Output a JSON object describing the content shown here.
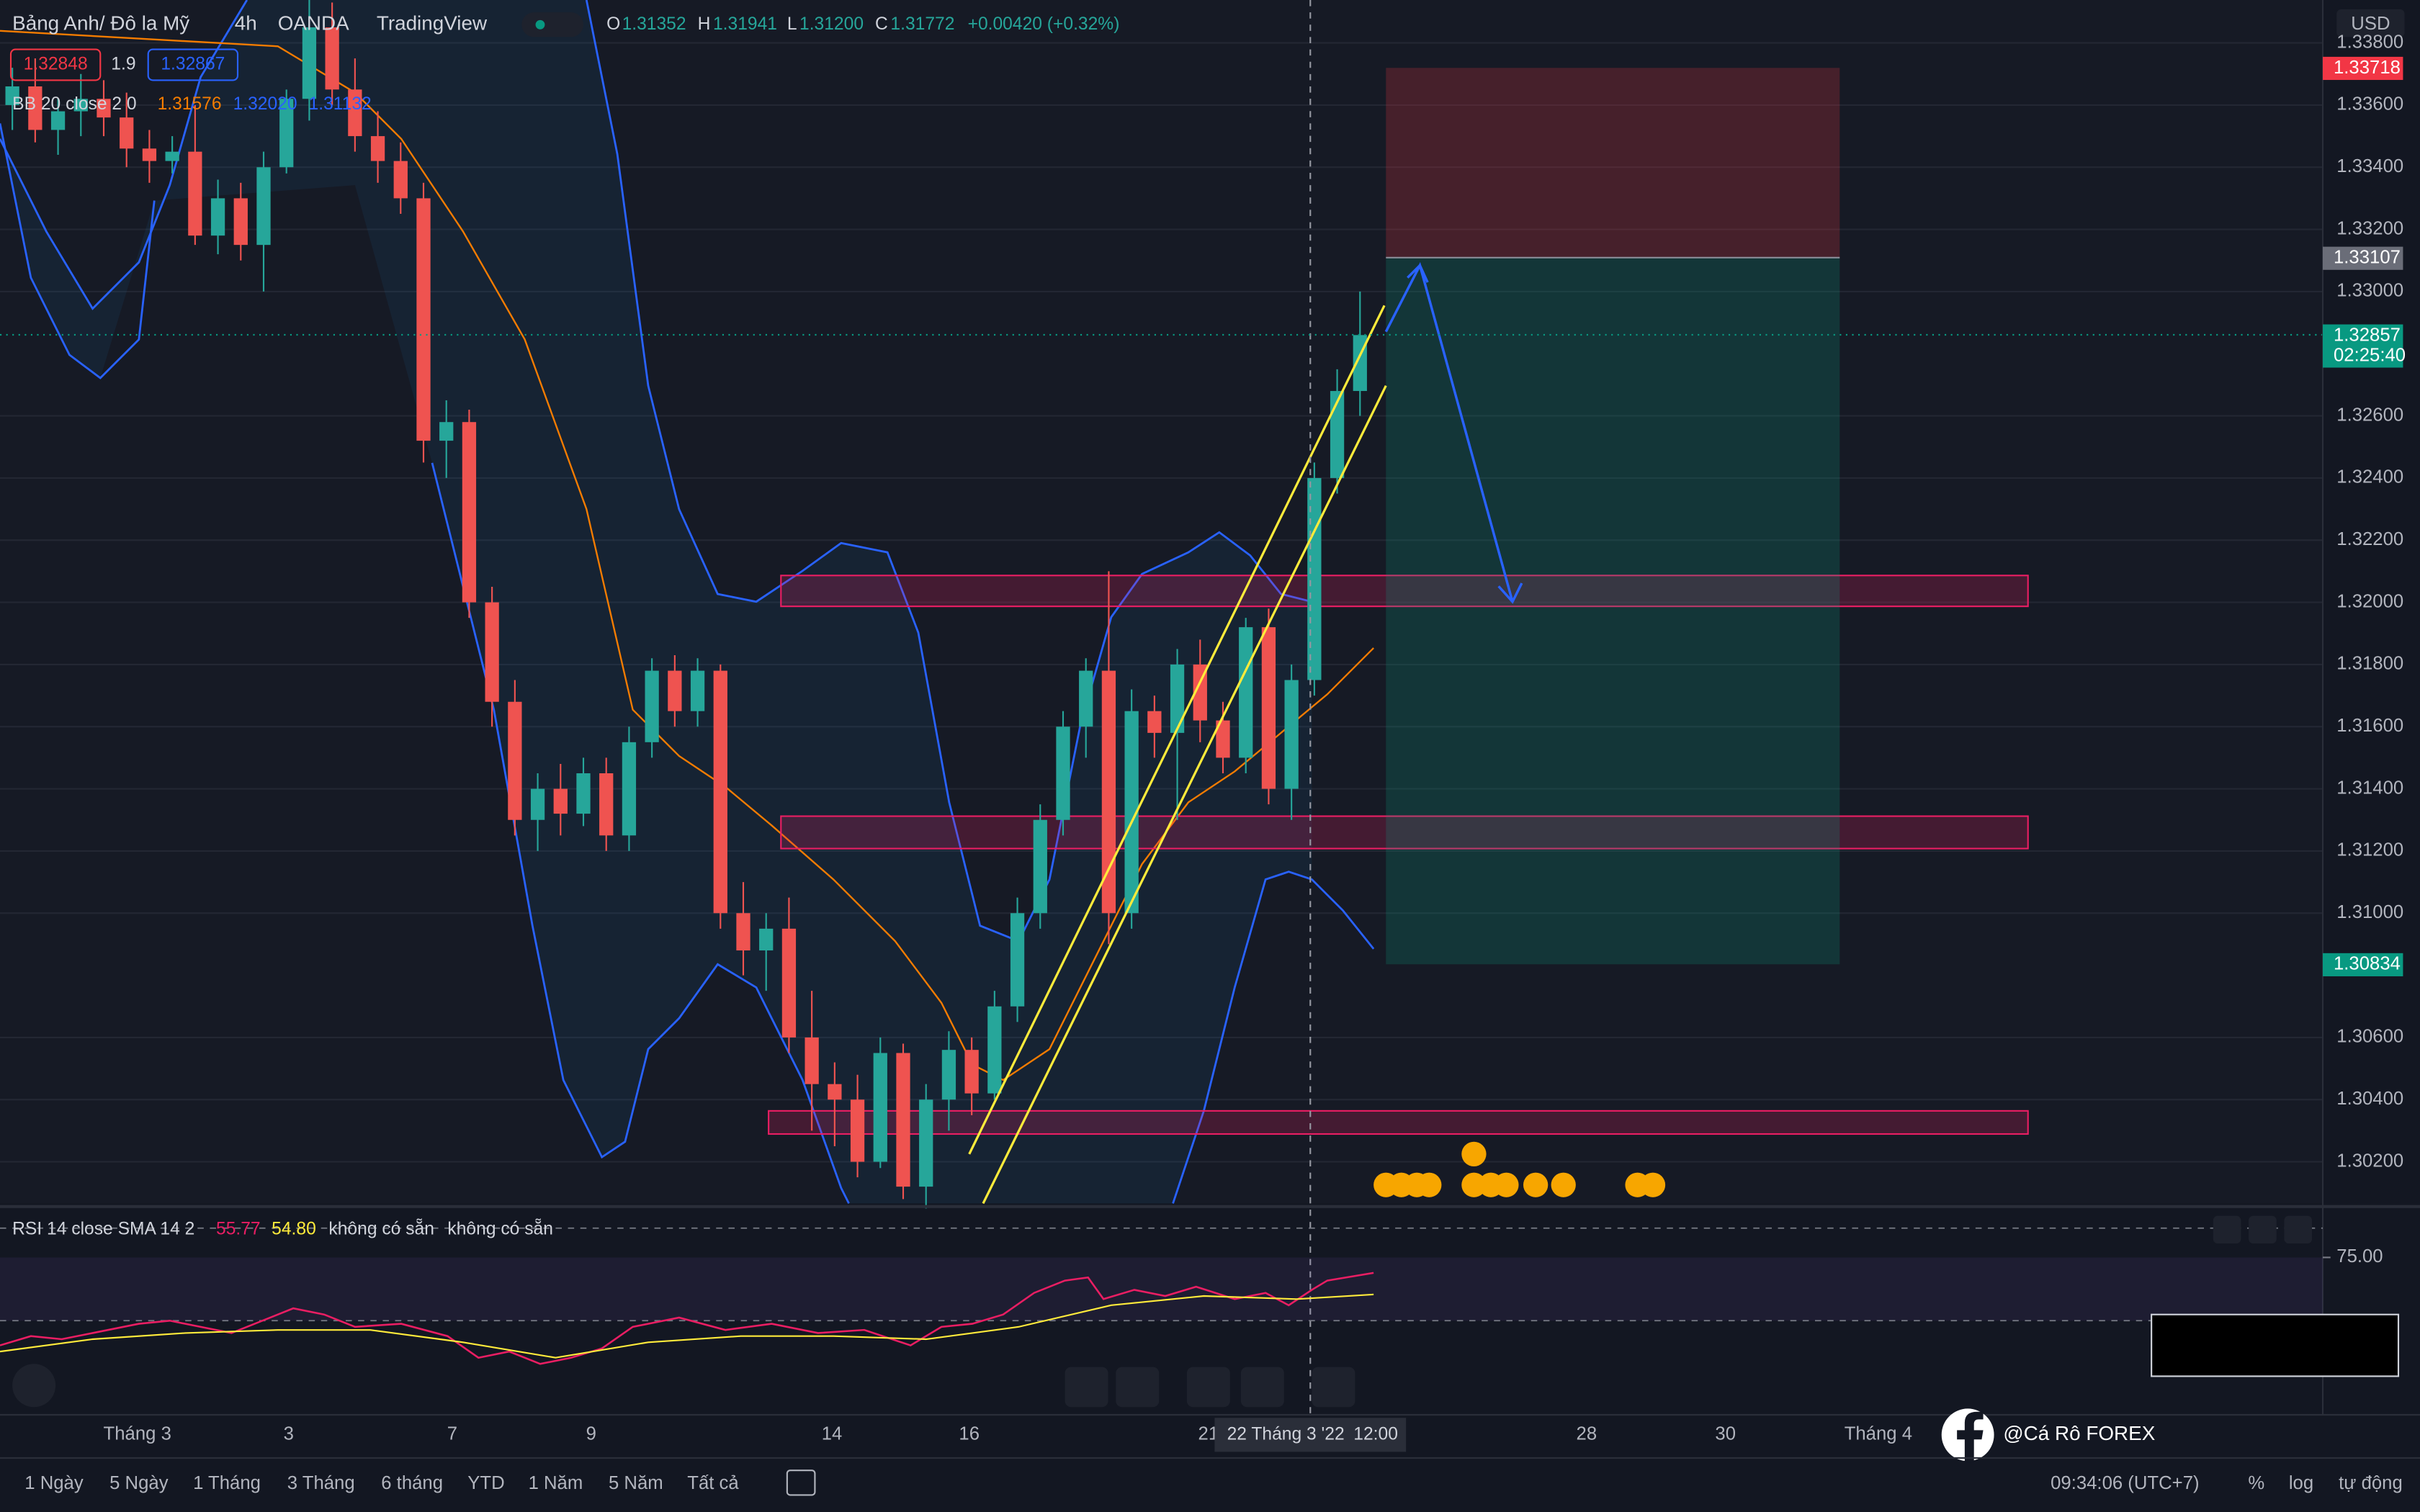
{
  "header": {
    "symbol": "Bảng Anh/ Đô la Mỹ",
    "interval": "4h",
    "broker": "OANDA",
    "platform": "TradingView",
    "open_key": "O",
    "open": "1.31352",
    "high_key": "H",
    "high": "1.31941",
    "low_key": "L",
    "low": "1.31200",
    "close_key": "C",
    "close": "1.31772",
    "change": "+0.00420 (+0.32%)",
    "sell": "1.32848",
    "spread": "1.9",
    "buy": "1.32867"
  },
  "bb_legend": {
    "name": "BB 20 close 2 0",
    "basis": "1.31576",
    "upper": "1.32020",
    "lower": "1.31132"
  },
  "chart": {
    "currency": "USD",
    "ylim": [
      1.30066,
      1.33938
    ],
    "yticks": [
      {
        "value": 1.338,
        "label": "1.33800"
      },
      {
        "value": 1.336,
        "label": "1.33600"
      },
      {
        "value": 1.334,
        "label": "1.33400"
      },
      {
        "value": 1.332,
        "label": "1.33200"
      },
      {
        "value": 1.33,
        "label": "1.33000"
      },
      {
        "value": 1.326,
        "label": "1.32600"
      },
      {
        "value": 1.324,
        "label": "1.32400"
      },
      {
        "value": 1.322,
        "label": "1.32200"
      },
      {
        "value": 1.32,
        "label": "1.32000"
      },
      {
        "value": 1.318,
        "label": "1.31800"
      },
      {
        "value": 1.316,
        "label": "1.31600"
      },
      {
        "value": 1.314,
        "label": "1.31400"
      },
      {
        "value": 1.312,
        "label": "1.31200"
      },
      {
        "value": 1.31,
        "label": "1.31000"
      },
      {
        "value": 1.306,
        "label": "1.30600"
      },
      {
        "value": 1.304,
        "label": "1.30400"
      },
      {
        "value": 1.302,
        "label": "1.30200"
      }
    ],
    "price_tags": [
      {
        "value": 1.33718,
        "color": "#f23645"
      },
      {
        "value": 1.33107,
        "color": "#6a6d78"
      },
      {
        "value": 1.32857,
        "color": "#089981",
        "countdown": "02:25:40"
      },
      {
        "value": 1.30834,
        "color": "#089981"
      }
    ],
    "up_color": "#26a69a",
    "down_color": "#ef5350",
    "candles": [
      [
        1.336,
        1.3372,
        1.3352,
        1.3366
      ],
      [
        1.3366,
        1.3375,
        1.3348,
        1.3352
      ],
      [
        1.3352,
        1.3362,
        1.3344,
        1.3358
      ],
      [
        1.3358,
        1.337,
        1.335,
        1.3362
      ],
      [
        1.3362,
        1.3368,
        1.335,
        1.3356
      ],
      [
        1.3356,
        1.3364,
        1.334,
        1.3346
      ],
      [
        1.3346,
        1.3352,
        1.3335,
        1.3342
      ],
      [
        1.3342,
        1.335,
        1.3338,
        1.3345
      ],
      [
        1.3345,
        1.336,
        1.3315,
        1.3318
      ],
      [
        1.3318,
        1.3336,
        1.3312,
        1.333
      ],
      [
        1.333,
        1.3335,
        1.331,
        1.3315
      ],
      [
        1.3315,
        1.3345,
        1.33,
        1.334
      ],
      [
        1.334,
        1.3365,
        1.3338,
        1.3362
      ],
      [
        1.3362,
        1.3395,
        1.3355,
        1.3385
      ],
      [
        1.3385,
        1.3393,
        1.336,
        1.3365
      ],
      [
        1.3365,
        1.3375,
        1.3345,
        1.335
      ],
      [
        1.335,
        1.3358,
        1.3335,
        1.3342
      ],
      [
        1.3342,
        1.3348,
        1.3325,
        1.333
      ],
      [
        1.333,
        1.3335,
        1.3245,
        1.3252
      ],
      [
        1.3252,
        1.3265,
        1.324,
        1.3258
      ],
      [
        1.3258,
        1.3262,
        1.3195,
        1.32
      ],
      [
        1.32,
        1.3205,
        1.316,
        1.3168
      ],
      [
        1.3168,
        1.3175,
        1.3125,
        1.313
      ],
      [
        1.313,
        1.3145,
        1.312,
        1.314
      ],
      [
        1.314,
        1.3148,
        1.3125,
        1.3132
      ],
      [
        1.3132,
        1.315,
        1.3128,
        1.3145
      ],
      [
        1.3145,
        1.315,
        1.312,
        1.3125
      ],
      [
        1.3125,
        1.316,
        1.312,
        1.3155
      ],
      [
        1.3155,
        1.3182,
        1.315,
        1.3178
      ],
      [
        1.3178,
        1.3183,
        1.316,
        1.3165
      ],
      [
        1.3165,
        1.3182,
        1.316,
        1.3178
      ],
      [
        1.3178,
        1.318,
        1.3095,
        1.31
      ],
      [
        1.31,
        1.311,
        1.308,
        1.3088
      ],
      [
        1.3088,
        1.31,
        1.3075,
        1.3095
      ],
      [
        1.3095,
        1.3105,
        1.3055,
        1.306
      ],
      [
        1.306,
        1.3075,
        1.303,
        1.3045
      ],
      [
        1.3045,
        1.3052,
        1.3025,
        1.304
      ],
      [
        1.304,
        1.3048,
        1.3015,
        1.302
      ],
      [
        1.302,
        1.306,
        1.3018,
        1.3055
      ],
      [
        1.3055,
        1.3058,
        1.3008,
        1.3012
      ],
      [
        1.3012,
        1.3045,
        1.3005,
        1.304
      ],
      [
        1.304,
        1.3062,
        1.303,
        1.3056
      ],
      [
        1.3056,
        1.306,
        1.3035,
        1.3042
      ],
      [
        1.3042,
        1.3075,
        1.304,
        1.307
      ],
      [
        1.307,
        1.3105,
        1.3065,
        1.31
      ],
      [
        1.31,
        1.3135,
        1.3095,
        1.313
      ],
      [
        1.313,
        1.3165,
        1.3125,
        1.316
      ],
      [
        1.316,
        1.3182,
        1.315,
        1.3178
      ],
      [
        1.3178,
        1.321,
        1.309,
        1.31
      ],
      [
        1.31,
        1.3172,
        1.3095,
        1.3165
      ],
      [
        1.3165,
        1.317,
        1.315,
        1.3158
      ],
      [
        1.3158,
        1.3185,
        1.313,
        1.318
      ],
      [
        1.318,
        1.3188,
        1.3155,
        1.3162
      ],
      [
        1.3162,
        1.3168,
        1.3145,
        1.315
      ],
      [
        1.315,
        1.3195,
        1.3145,
        1.3192
      ],
      [
        1.3192,
        1.3198,
        1.3135,
        1.314
      ],
      [
        1.314,
        1.318,
        1.313,
        1.3175
      ],
      [
        1.3175,
        1.3245,
        1.317,
        1.324
      ],
      [
        1.324,
        1.3275,
        1.3235,
        1.3268
      ],
      [
        1.3268,
        1.33,
        1.326,
        1.3286
      ]
    ]
  },
  "rsi": {
    "name": "RSI 14 close SMA 14 2",
    "rsi_value": "55.77",
    "sma_value": "54.80",
    "na_1": "không có sẵn",
    "na_2": "không có sẵn",
    "ytick": {
      "value": 75,
      "label": "75.00"
    }
  },
  "time_axis": [
    "Tháng 3",
    "3",
    "7",
    "9",
    "14",
    "16",
    "21",
    "28",
    "30",
    "Tháng 4"
  ],
  "crosshair": {
    "date": "22 Tháng 3 '22",
    "time": "12:00"
  },
  "toolbar": {
    "ranges": [
      "1 Ngày",
      "5 Ngày",
      "1 Tháng",
      "3 Tháng",
      "6 tháng",
      "YTD",
      "1 Năm",
      "5 Năm",
      "Tất cả"
    ],
    "clock": "09:34:06 (UTC+7)",
    "percent": "%",
    "log": "log",
    "auto": "tự động"
  },
  "watermark": "@Cá Rô FOREX"
}
